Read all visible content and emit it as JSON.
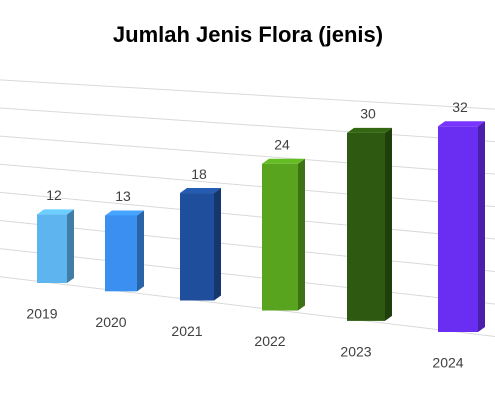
{
  "chart_data": {
    "type": "bar3d",
    "title": "Jumlah Jenis Flora (jenis)",
    "categories": [
      "2019",
      "2020",
      "2021",
      "2022",
      "2023",
      "2024"
    ],
    "values": [
      12,
      13,
      18,
      24,
      30,
      32
    ],
    "colors": [
      "#5db4ef",
      "#3b8ff0",
      "#1f4f9c",
      "#58a41e",
      "#2d5a10",
      "#6a2df2"
    ],
    "ylim": [
      0,
      35
    ],
    "yticks": [
      0,
      5,
      10,
      15,
      20,
      25,
      30,
      35
    ],
    "grid": true
  }
}
